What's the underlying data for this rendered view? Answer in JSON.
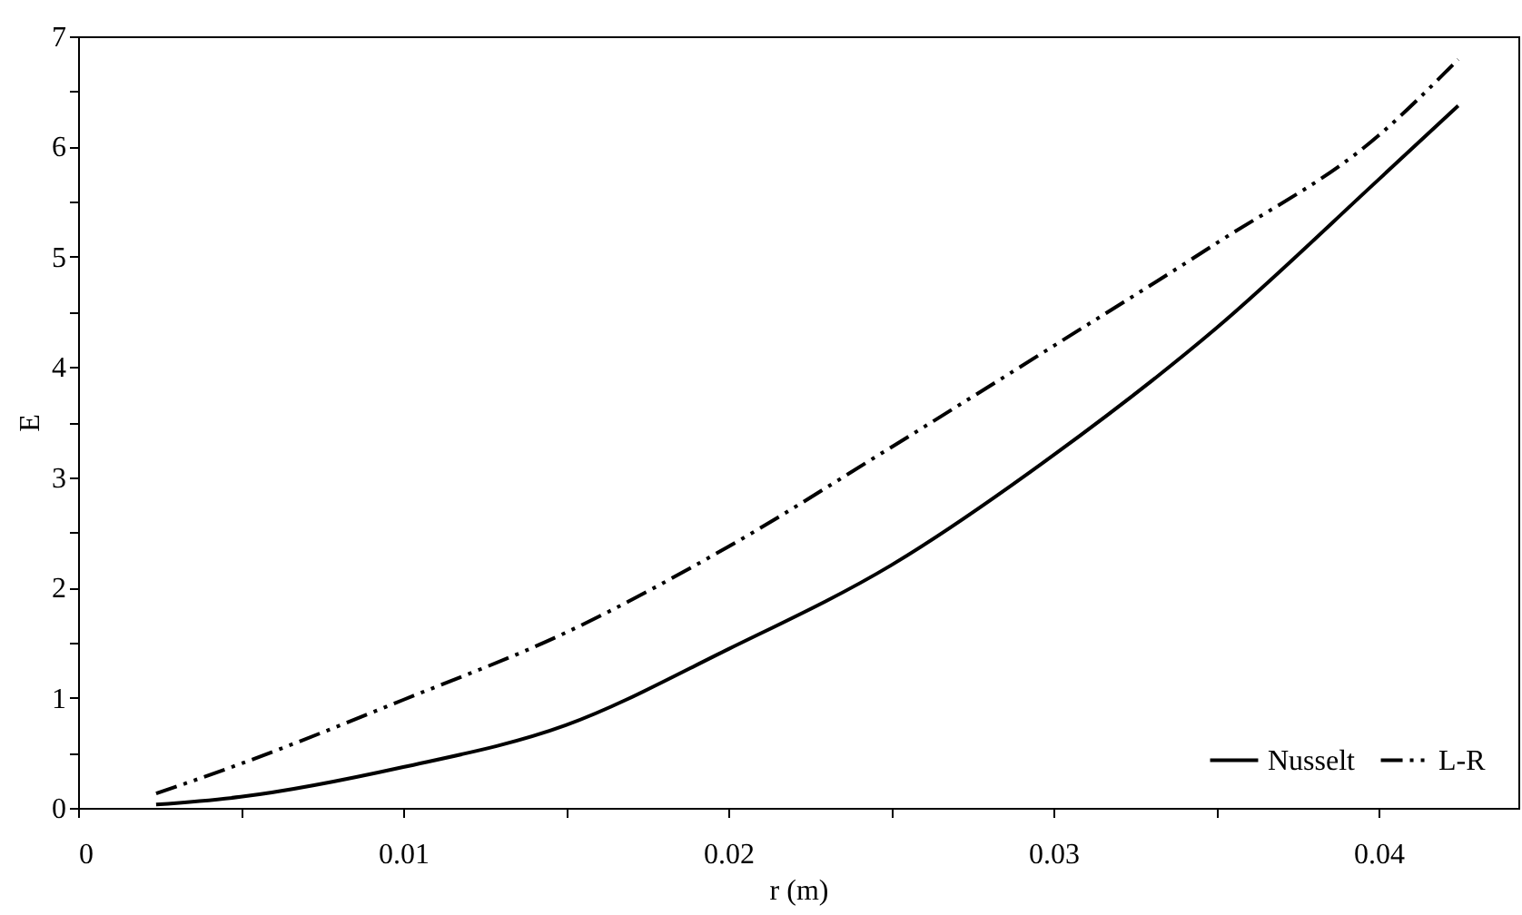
{
  "chart_data": {
    "type": "line",
    "xlabel": "r (m)",
    "ylabel": "E",
    "xlim": [
      0,
      0.0443
    ],
    "ylim": [
      0,
      7
    ],
    "xticks": [
      0,
      {
        "value": 0.005,
        "label": null
      },
      0.01,
      {
        "value": 0.015,
        "label": null
      },
      0.02,
      {
        "value": 0.025,
        "label": null
      },
      0.03,
      {
        "value": 0.035,
        "label": null
      },
      0.04
    ],
    "yticks": [
      0,
      {
        "value": 0.5,
        "label": null
      },
      1,
      {
        "value": 1.5,
        "label": null
      },
      2,
      {
        "value": 2.5,
        "label": null
      },
      3,
      {
        "value": 3.5,
        "label": null
      },
      4,
      {
        "value": 4.5,
        "label": null
      },
      5,
      {
        "value": 5.5,
        "label": null
      },
      6,
      {
        "value": 6.5,
        "label": null
      },
      7
    ],
    "x": [
      0.0024,
      0.005,
      0.01,
      0.015,
      0.02,
      0.025,
      0.03,
      0.035,
      0.04,
      0.04245
    ],
    "grid": false,
    "legend": "bottom right",
    "marker": "none",
    "series": [
      {
        "name": "Nusselt",
        "color": "#000000",
        "line_style": "solid",
        "values": [
          0.03,
          0.1,
          0.37,
          0.75,
          1.44,
          2.2,
          3.2,
          4.35,
          5.7,
          6.37
        ]
      },
      {
        "name": "L-R",
        "color": "#000000",
        "line_style": "dashed",
        "values": [
          0.13,
          0.4,
          0.98,
          1.59,
          2.37,
          3.27,
          4.19,
          5.12,
          6.1,
          6.79
        ]
      }
    ]
  }
}
